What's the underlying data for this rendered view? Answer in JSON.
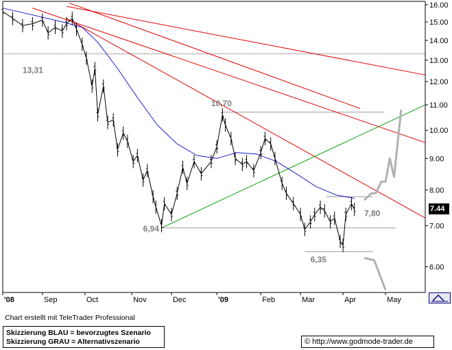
{
  "chart_data": {
    "type": "line",
    "subtype": "ohlc-bars with moving average, trendlines and scenario sketches",
    "y_axis": {
      "position": "right",
      "ylim": [
        5.45,
        16.2
      ],
      "scale": "log",
      "ticks": [
        "16.00",
        "15.00",
        "14.00",
        "13.00",
        "12.00",
        "11.00",
        "10.00",
        "9.00",
        "8.00",
        "7.00",
        "6.00"
      ],
      "tick_values": [
        16,
        15,
        14,
        13,
        12,
        11,
        10,
        9,
        8,
        7,
        6
      ]
    },
    "x_axis": {
      "range": [
        "2008-08-04",
        "2009-05-29"
      ],
      "ticks": [
        {
          "label": "'08",
          "date": "2008-08-04",
          "bold": true
        },
        {
          "label": "Sep",
          "date": "2008-09-01",
          "bold": false
        },
        {
          "label": "Oct",
          "date": "2008-10-01",
          "bold": false
        },
        {
          "label": "Nov",
          "date": "2008-11-03",
          "bold": false
        },
        {
          "label": "Dec",
          "date": "2008-12-01",
          "bold": false
        },
        {
          "label": "'09",
          "date": "2009-01-02",
          "bold": true
        },
        {
          "label": "Feb",
          "date": "2009-02-02",
          "bold": false
        },
        {
          "label": "Mar",
          "date": "2009-03-02",
          "bold": false
        },
        {
          "label": "Apr",
          "date": "2009-04-01",
          "bold": false
        },
        {
          "label": "May",
          "date": "2009-05-01",
          "bold": false
        }
      ]
    },
    "grid": false,
    "price_series": {
      "color": "#000000",
      "points": [
        [
          "2008-08-04",
          15.6
        ],
        [
          "2008-08-11",
          15.2
        ],
        [
          "2008-08-18",
          14.8
        ],
        [
          "2008-08-25",
          14.9
        ],
        [
          "2008-09-01",
          15.1
        ],
        [
          "2008-09-05",
          14.4
        ],
        [
          "2008-09-10",
          14.7
        ],
        [
          "2008-09-15",
          14.5
        ],
        [
          "2008-09-18",
          14.9
        ],
        [
          "2008-09-22",
          15.2
        ],
        [
          "2008-09-25",
          14.6
        ],
        [
          "2008-09-29",
          13.8
        ],
        [
          "2008-10-02",
          13.1
        ],
        [
          "2008-10-06",
          11.8
        ],
        [
          "2008-10-08",
          12.6
        ],
        [
          "2008-10-10",
          10.6
        ],
        [
          "2008-10-14",
          11.8
        ],
        [
          "2008-10-17",
          10.3
        ],
        [
          "2008-10-21",
          10.4
        ],
        [
          "2008-10-24",
          9.3
        ],
        [
          "2008-10-28",
          9.9
        ],
        [
          "2008-10-31",
          9.6
        ],
        [
          "2008-11-04",
          8.9
        ],
        [
          "2008-11-07",
          9.1
        ],
        [
          "2008-11-11",
          8.3
        ],
        [
          "2008-11-14",
          8.6
        ],
        [
          "2008-11-18",
          7.8
        ],
        [
          "2008-11-20",
          7.5
        ],
        [
          "2008-11-24",
          7.0
        ],
        [
          "2008-11-26",
          7.6
        ],
        [
          "2008-12-01",
          7.3
        ],
        [
          "2008-12-05",
          7.9
        ],
        [
          "2008-12-09",
          8.7
        ],
        [
          "2008-12-12",
          8.2
        ],
        [
          "2008-12-17",
          8.9
        ],
        [
          "2008-12-22",
          8.5
        ],
        [
          "2008-12-29",
          8.9
        ],
        [
          "2009-01-02",
          9.4
        ],
        [
          "2009-01-06",
          10.6
        ],
        [
          "2009-01-08",
          10.2
        ],
        [
          "2009-01-12",
          9.7
        ],
        [
          "2009-01-15",
          9.0
        ],
        [
          "2009-01-20",
          8.8
        ],
        [
          "2009-01-23",
          8.9
        ],
        [
          "2009-01-28",
          8.6
        ],
        [
          "2009-02-02",
          9.2
        ],
        [
          "2009-02-05",
          9.7
        ],
        [
          "2009-02-09",
          9.5
        ],
        [
          "2009-02-12",
          9.0
        ],
        [
          "2009-02-17",
          8.2
        ],
        [
          "2009-02-20",
          7.9
        ],
        [
          "2009-02-25",
          7.6
        ],
        [
          "2009-03-02",
          7.3
        ],
        [
          "2009-03-05",
          6.9
        ],
        [
          "2009-03-09",
          7.1
        ],
        [
          "2009-03-12",
          7.3
        ],
        [
          "2009-03-16",
          7.5
        ],
        [
          "2009-03-19",
          7.4
        ],
        [
          "2009-03-23",
          7.1
        ],
        [
          "2009-03-26",
          7.2
        ],
        [
          "2009-03-30",
          6.6
        ],
        [
          "2009-04-01",
          6.5
        ],
        [
          "2009-04-03",
          7.3
        ],
        [
          "2009-04-07",
          7.6
        ],
        [
          "2009-04-09",
          7.44
        ]
      ]
    },
    "moving_average": {
      "color": "#1a1acc",
      "points": [
        [
          "2008-08-04",
          15.8
        ],
        [
          "2008-08-25",
          15.4
        ],
        [
          "2008-09-15",
          15.0
        ],
        [
          "2008-09-29",
          14.7
        ],
        [
          "2008-10-10",
          13.9
        ],
        [
          "2008-10-24",
          12.6
        ],
        [
          "2008-11-07",
          11.3
        ],
        [
          "2008-11-21",
          10.2
        ],
        [
          "2008-12-05",
          9.5
        ],
        [
          "2008-12-19",
          9.1
        ],
        [
          "2009-01-02",
          9.0
        ],
        [
          "2009-01-16",
          9.2
        ],
        [
          "2009-01-30",
          9.15
        ],
        [
          "2009-02-13",
          8.9
        ],
        [
          "2009-02-27",
          8.5
        ],
        [
          "2009-03-13",
          8.1
        ],
        [
          "2009-03-27",
          7.85
        ],
        [
          "2009-04-09",
          7.75
        ]
      ]
    },
    "trendlines": [
      {
        "name": "downtrend-1",
        "color": "#e00000",
        "from": [
          "2008-09-18",
          15.9
        ],
        "to": [
          "2009-05-29",
          12.3
        ]
      },
      {
        "name": "downtrend-2",
        "color": "#e00000",
        "from": [
          "2008-08-25",
          15.8
        ],
        "to": [
          "2009-05-29",
          9.55
        ]
      },
      {
        "name": "downtrend-3",
        "color": "#e00000",
        "from": [
          "2008-09-18",
          15.2
        ],
        "to": [
          "2009-05-29",
          7.2
        ]
      },
      {
        "name": "long-ma-red",
        "color": "#e00000",
        "from": [
          "2008-09-20",
          16.1
        ],
        "to": [
          "2009-04-13",
          10.85
        ]
      },
      {
        "name": "uptrend",
        "color": "#00a000",
        "from": [
          "2008-11-24",
          6.94
        ],
        "to": [
          "2009-05-29",
          11.0
        ]
      }
    ],
    "horizontal_lines": [
      {
        "name": "level-13",
        "color": "#555555",
        "style": "dotted",
        "value": 13.31,
        "from": "2008-08-04",
        "to": "2009-05-29"
      },
      {
        "name": "level-10-70",
        "color": "#999999",
        "value": 10.7,
        "from": "2009-01-06",
        "to": "2009-04-30"
      },
      {
        "name": "level-6-94",
        "color": "#999999",
        "value": 6.94,
        "from": "2008-11-24",
        "to": "2009-05-08"
      },
      {
        "name": "level-7-80",
        "color": "#999999",
        "value": 7.8,
        "from": "2009-03-20",
        "to": "2009-04-22"
      },
      {
        "name": "level-6-35",
        "color": "#999999",
        "value": 6.35,
        "from": "2009-03-05",
        "to": "2009-04-22"
      }
    ],
    "scenario_grey": [
      [
        "2009-04-16",
        7.7
      ],
      [
        "2009-04-21",
        7.9
      ],
      [
        "2009-04-24",
        7.9
      ],
      [
        "2009-04-28",
        8.25
      ],
      [
        "2009-05-01",
        8.25
      ],
      [
        "2009-05-04",
        9.0
      ],
      [
        "2009-05-07",
        8.4
      ],
      [
        "2009-05-12",
        10.8
      ]
    ],
    "scenario_grey_down": [
      [
        "2009-04-16",
        6.2
      ],
      [
        "2009-04-23",
        6.15
      ],
      [
        "2009-05-01",
        5.5
      ]
    ],
    "annotations": [
      {
        "text": "13,31",
        "x": "2008-08-18",
        "y": 12.4
      },
      {
        "text": "10,70",
        "x": "2008-12-29",
        "y": 10.95
      },
      {
        "text": "6,94",
        "x": "2008-11-11",
        "y": 6.85
      },
      {
        "text": "7,80",
        "x": "2009-04-16",
        "y": 7.25
      },
      {
        "text": "6,35",
        "x": "2009-03-09",
        "y": 6.1
      }
    ],
    "last_price": "7.44",
    "title": "",
    "xlabel": "",
    "ylabel": ""
  },
  "footer": {
    "credit": "Chart erstellt mit TeleTrader Professional",
    "scenario_blue": "Skizzierung BLAU = bevorzugtes Szenario",
    "scenario_grey": "Skizzierung GRAU = Alternativszenario",
    "source": "© http://www.godmode-trader.de"
  },
  "colors": {
    "price": "#000000",
    "moving_average": "#1a1acc",
    "trendline": "#e00000",
    "uptrend": "#00a000",
    "levels": "#999999",
    "scenario": "#b0b0b0"
  }
}
